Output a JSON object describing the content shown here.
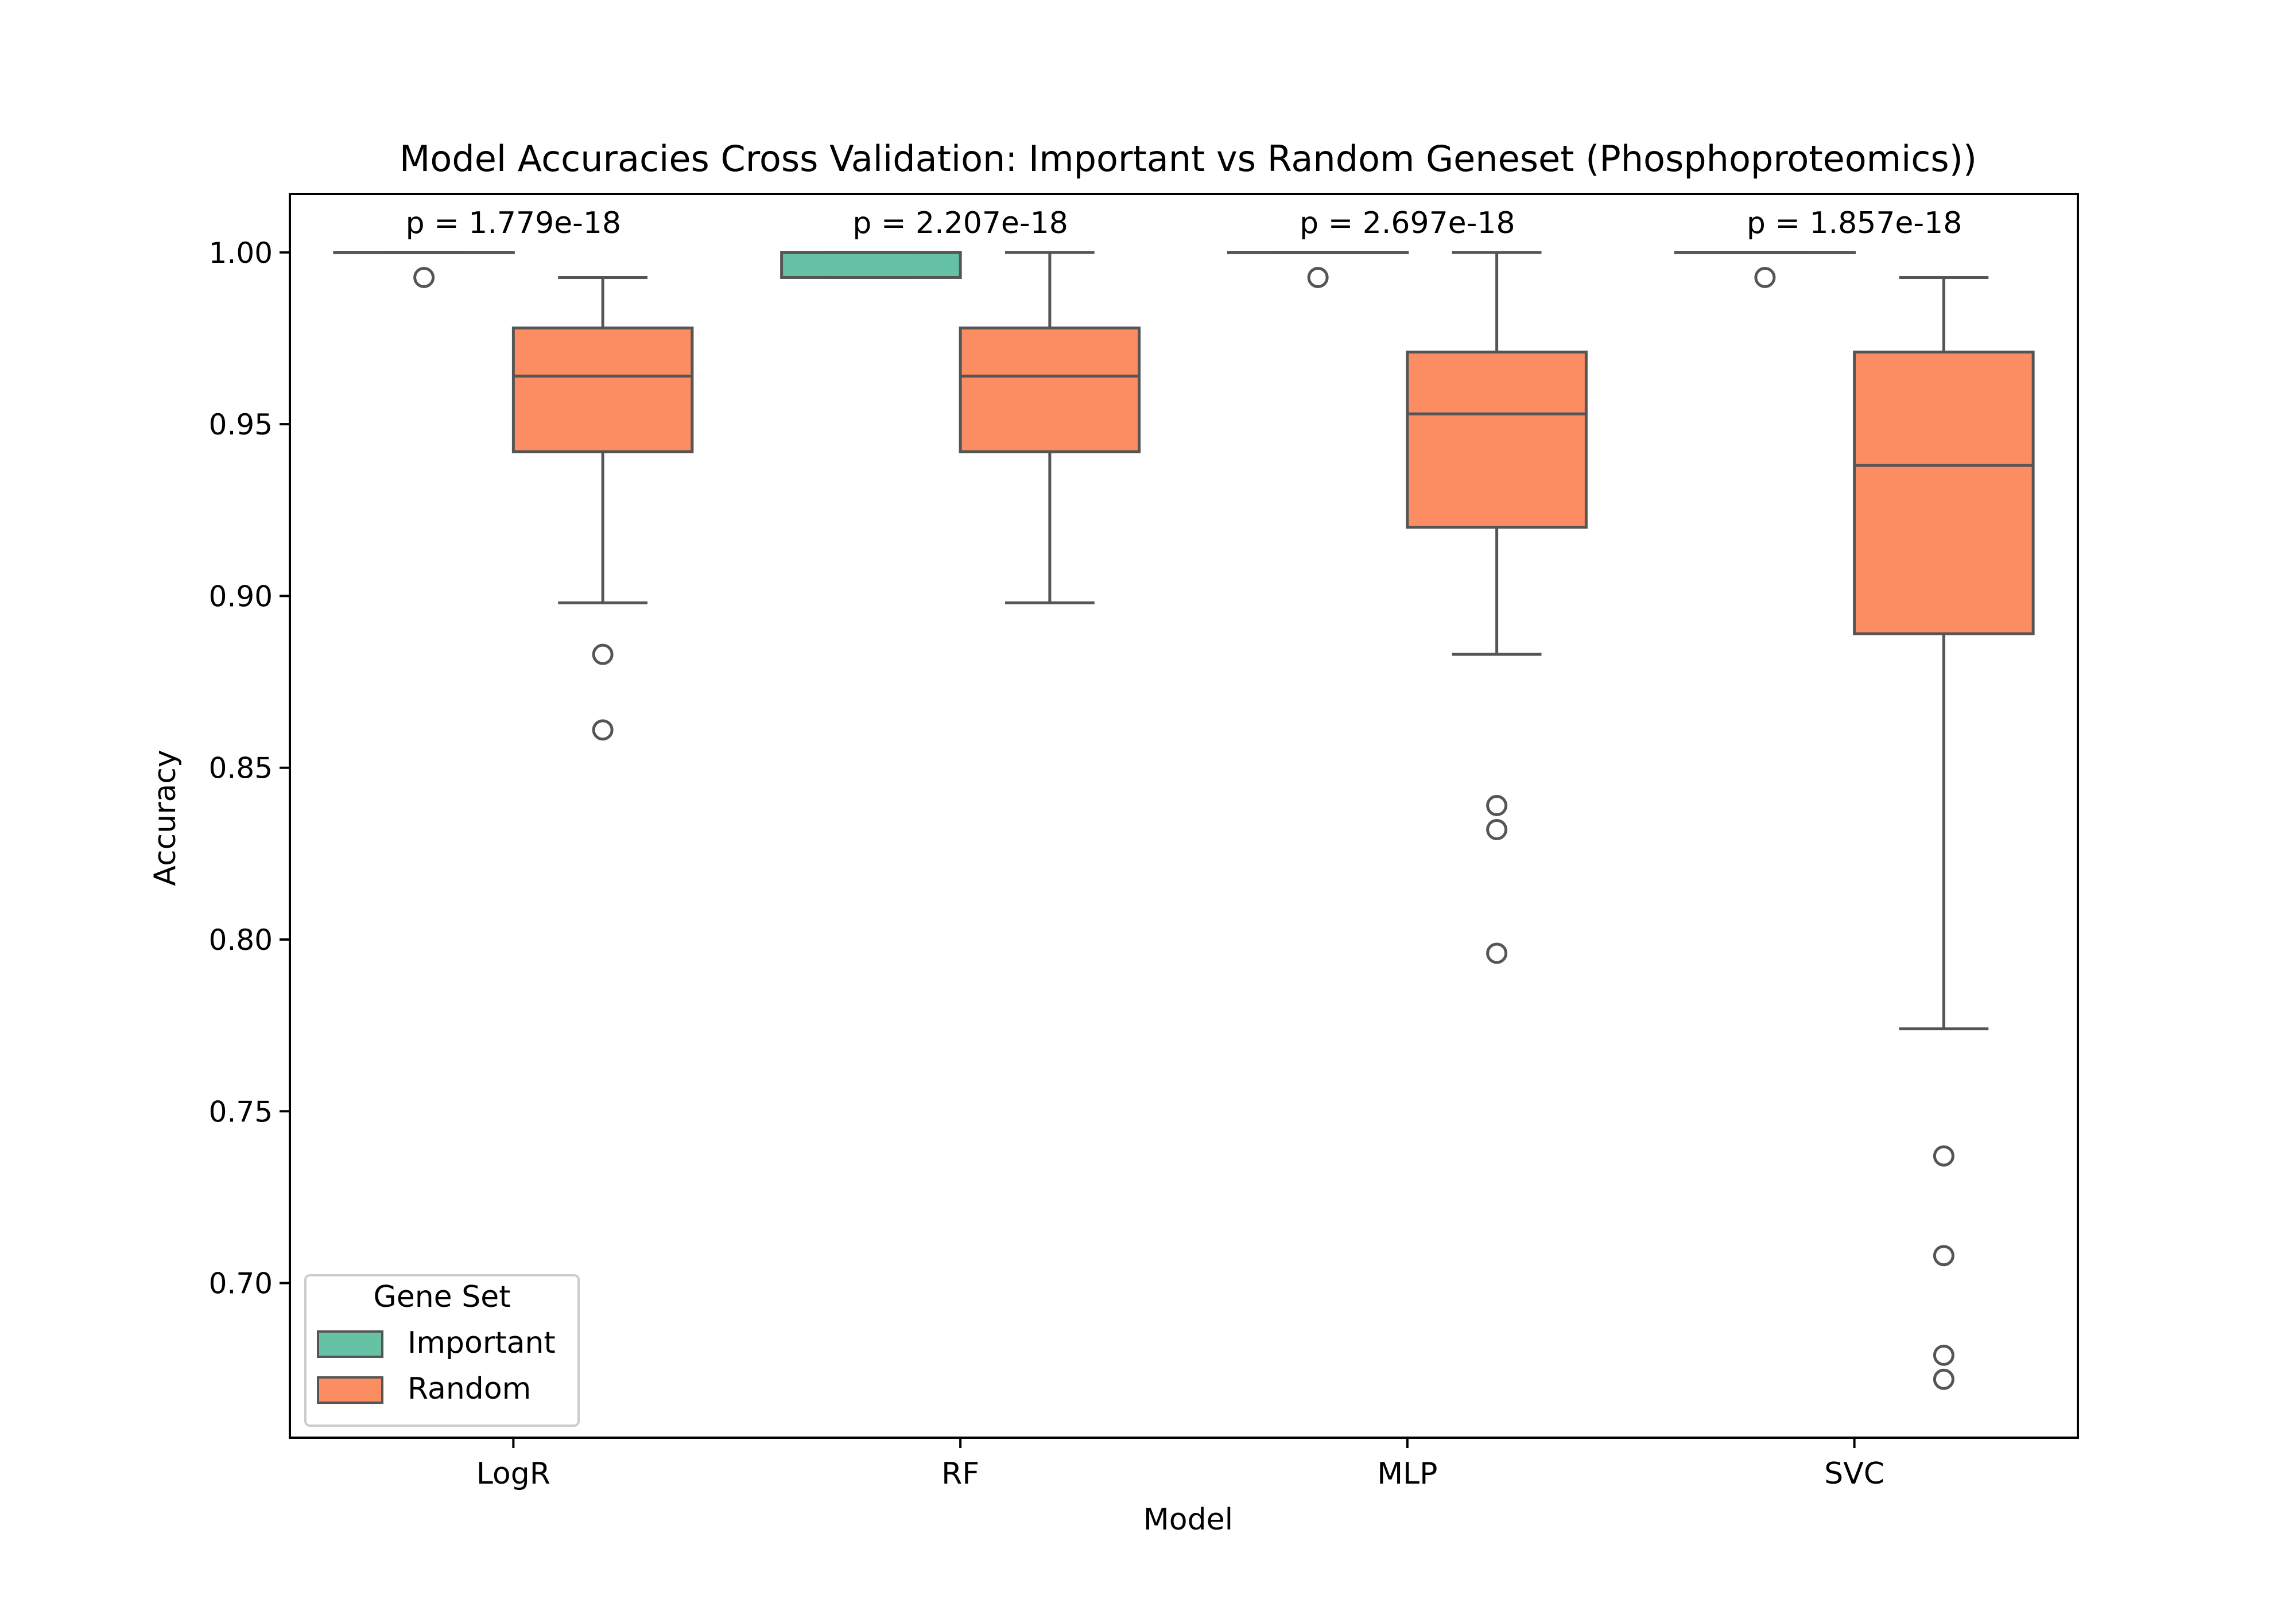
{
  "chart_data": {
    "type": "box",
    "title": "Model Accuracies Cross Validation: Important vs Random Geneset (Phosphoproteomics))",
    "xlabel": "Model",
    "ylabel": "Accuracy",
    "categories": [
      "LogR",
      "RF",
      "MLP",
      "SVC"
    ],
    "ylim": [
      0.655,
      1.017
    ],
    "yticks": [
      {
        "value": 0.7,
        "label": "0.70"
      },
      {
        "value": 0.75,
        "label": "0.75"
      },
      {
        "value": 0.8,
        "label": "0.80"
      },
      {
        "value": 0.85,
        "label": "0.85"
      },
      {
        "value": 0.9,
        "label": "0.90"
      },
      {
        "value": 0.95,
        "label": "0.95"
      },
      {
        "value": 1.0,
        "label": "1.00"
      }
    ],
    "grid": false,
    "legend": {
      "title": "Gene Set",
      "placement": "lower-left"
    },
    "series": [
      {
        "name": "Important",
        "color": "#66c2a5",
        "boxes": [
          {
            "whislo": 1.0,
            "q1": 1.0,
            "med": 1.0,
            "q3": 1.0,
            "whishi": 1.0,
            "fliers": [
              0.9927
            ]
          },
          {
            "whislo": 0.9927,
            "q1": 0.9927,
            "med": 1.0,
            "q3": 1.0,
            "whishi": 1.0,
            "fliers": []
          },
          {
            "whislo": 1.0,
            "q1": 1.0,
            "med": 1.0,
            "q3": 1.0,
            "whishi": 1.0,
            "fliers": [
              0.9927
            ]
          },
          {
            "whislo": 1.0,
            "q1": 1.0,
            "med": 1.0,
            "q3": 1.0,
            "whishi": 1.0,
            "fliers": [
              0.9927
            ]
          }
        ]
      },
      {
        "name": "Random",
        "color": "#fc8d62",
        "boxes": [
          {
            "whislo": 0.898,
            "q1": 0.942,
            "med": 0.964,
            "q3": 0.978,
            "whishi": 0.9927,
            "fliers": [
              0.883,
              0.861
            ]
          },
          {
            "whislo": 0.898,
            "q1": 0.942,
            "med": 0.964,
            "q3": 0.978,
            "whishi": 1.0,
            "fliers": []
          },
          {
            "whislo": 0.883,
            "q1": 0.92,
            "med": 0.953,
            "q3": 0.971,
            "whishi": 1.0,
            "fliers": [
              0.839,
              0.832,
              0.796
            ]
          },
          {
            "whislo": 0.774,
            "q1": 0.889,
            "med": 0.938,
            "q3": 0.971,
            "whishi": 0.9927,
            "fliers": [
              0.737,
              0.708,
              0.679,
              0.672
            ]
          }
        ]
      }
    ],
    "annotations": [
      {
        "category": "LogR",
        "text": "p = 1.779e-18",
        "y": 1.007
      },
      {
        "category": "RF",
        "text": "p = 2.207e-18",
        "y": 1.007
      },
      {
        "category": "MLP",
        "text": "p = 2.697e-18",
        "y": 1.007
      },
      {
        "category": "SVC",
        "text": "p = 1.857e-18",
        "y": 1.007
      }
    ]
  }
}
